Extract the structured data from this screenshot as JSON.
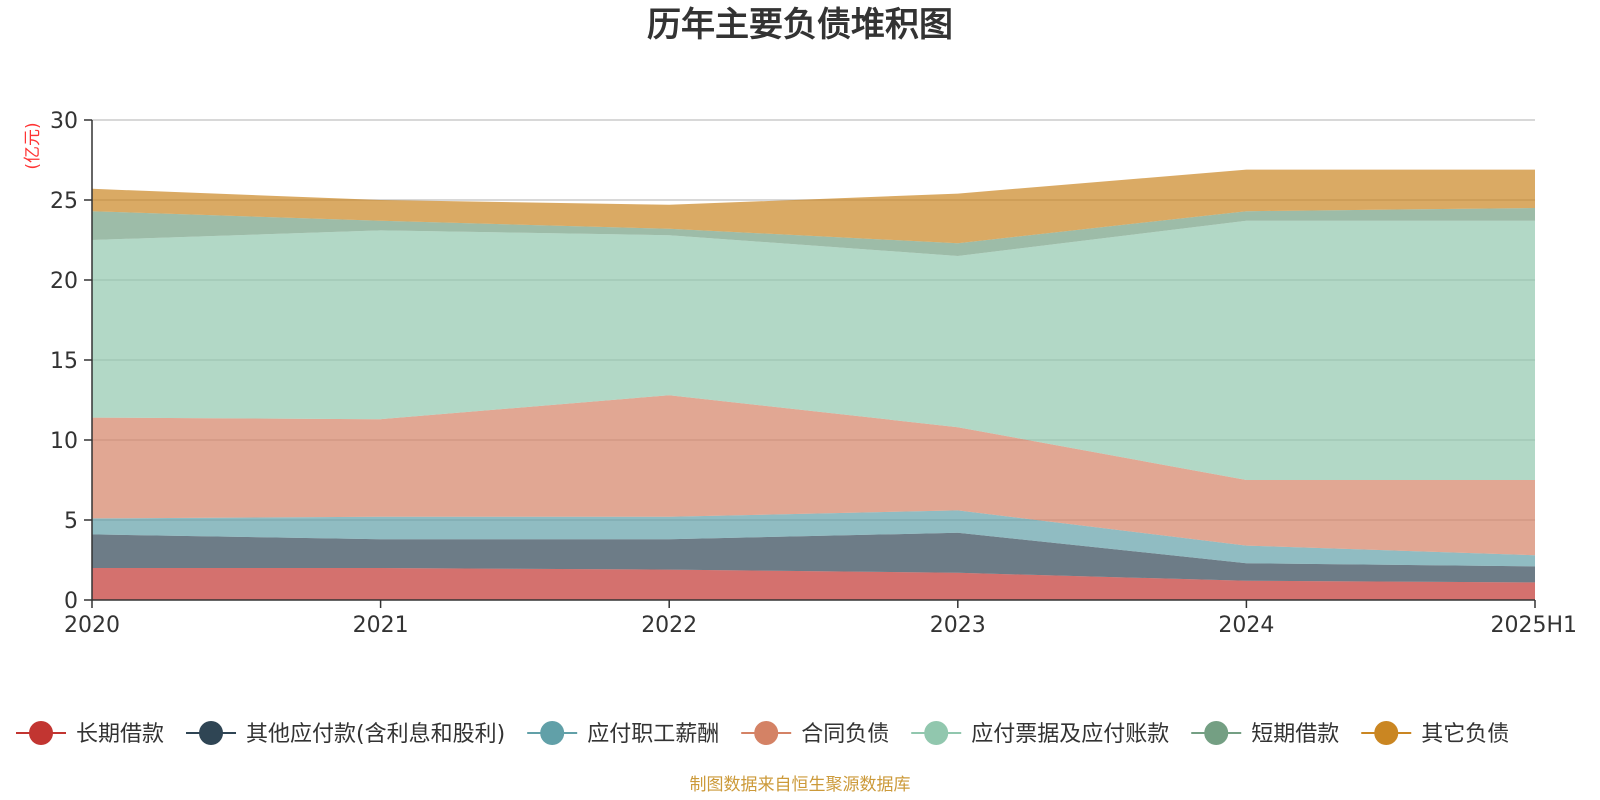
{
  "chart_data": {
    "type": "area",
    "stacked": true,
    "title": "历年主要负债堆积图",
    "unit_label": "(亿元)",
    "source_note": "制图数据来自恒生聚源数据库",
    "x": [
      "2020",
      "2021",
      "2022",
      "2023",
      "2024",
      "2025H1"
    ],
    "ylim": [
      0,
      30
    ],
    "yticks": [
      0,
      5,
      10,
      15,
      20,
      25,
      30
    ],
    "grid": true,
    "legend_position": "bottom",
    "series": [
      {
        "name": "长期借款",
        "color": "#c23531",
        "values": [
          2.0,
          2.0,
          1.9,
          1.7,
          1.2,
          1.1
        ]
      },
      {
        "name": "其他应付款(含利息和股利)",
        "color": "#2f4554",
        "values": [
          2.1,
          1.8,
          1.9,
          2.5,
          1.1,
          1.0
        ]
      },
      {
        "name": "应付职工薪酬",
        "color": "#61a0a8",
        "values": [
          1.0,
          1.4,
          1.4,
          1.4,
          1.1,
          0.7
        ]
      },
      {
        "name": "合同负债",
        "color": "#d48265",
        "values": [
          6.3,
          6.1,
          7.6,
          5.2,
          4.1,
          4.7
        ]
      },
      {
        "name": "应付票据及应付账款",
        "color": "#91c7ae",
        "values": [
          11.1,
          11.8,
          10.0,
          10.7,
          16.2,
          16.2
        ]
      },
      {
        "name": "短期借款",
        "color": "#749f83",
        "values": [
          1.8,
          0.6,
          0.4,
          0.8,
          0.6,
          0.8
        ]
      },
      {
        "name": "其它负债",
        "color": "#ca8622",
        "values": [
          1.4,
          1.3,
          1.5,
          3.1,
          2.6,
          2.4
        ]
      }
    ]
  }
}
